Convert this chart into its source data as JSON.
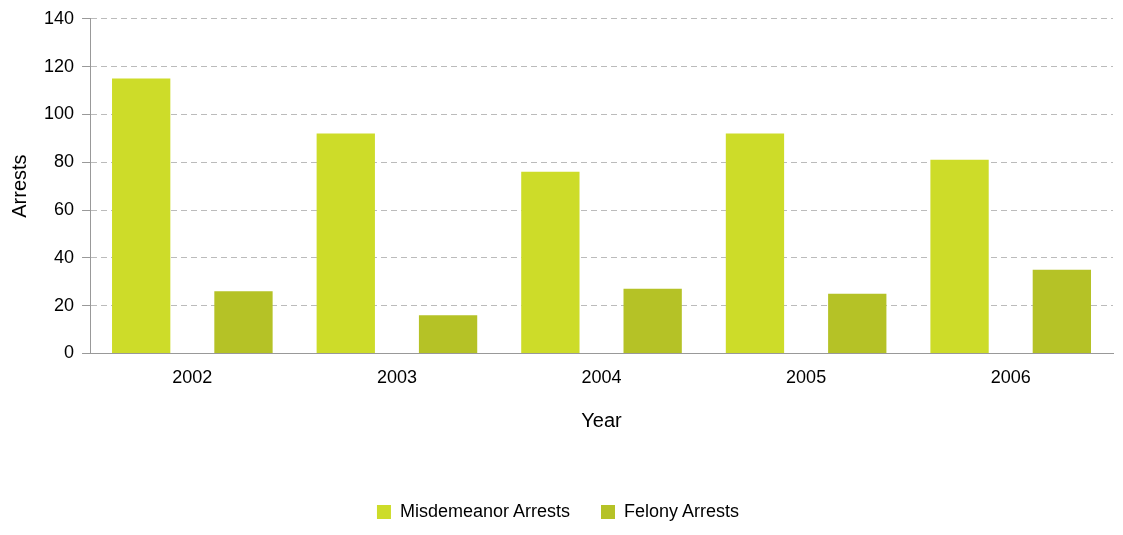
{
  "chart_data": {
    "type": "bar",
    "xlabel": "Year",
    "ylabel": "Arrests",
    "categories": [
      "2002",
      "2003",
      "2004",
      "2005",
      "2006"
    ],
    "series": [
      {
        "name": "Misdemeanor Arrests",
        "color": "#cddc29",
        "values": [
          115,
          92,
          76,
          92,
          81
        ]
      },
      {
        "name": "Felony Arrests",
        "color": "#b5c226",
        "values": [
          26,
          16,
          27,
          25,
          35
        ]
      }
    ],
    "ylim": [
      0,
      140
    ],
    "yticks": [
      0,
      20,
      40,
      60,
      80,
      100,
      120,
      140
    ],
    "grid": "y",
    "legend": "bottom"
  }
}
